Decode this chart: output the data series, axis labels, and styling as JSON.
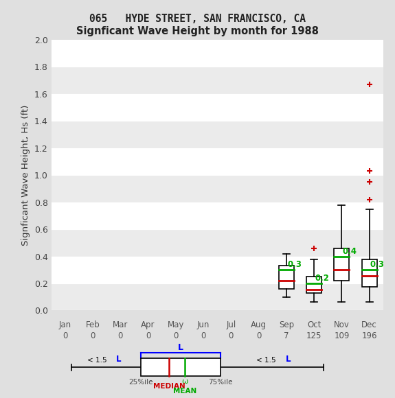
{
  "title_line1": "065   HYDE STREET, SAN FRANCISCO, CA",
  "title_line2": "Signficant Wave Height by month for 1988",
  "ylabel": "Signficant Wave Height, Hs (ft)",
  "months": [
    "Jan",
    "Feb",
    "Mar",
    "Apr",
    "May",
    "Jun",
    "Jul",
    "Aug",
    "Sep",
    "Oct",
    "Nov",
    "Dec"
  ],
  "counts": [
    0,
    0,
    0,
    0,
    0,
    0,
    0,
    0,
    7,
    125,
    109,
    196
  ],
  "ylim": [
    0.0,
    2.0
  ],
  "yticks": [
    0.0,
    0.2,
    0.4,
    0.6,
    0.8,
    1.0,
    1.2,
    1.4,
    1.6,
    1.8,
    2.0
  ],
  "box_data": {
    "Sep": {
      "q1": 0.16,
      "median": 0.22,
      "mean": 0.3,
      "q3": 0.33,
      "whislo": 0.1,
      "whishi": 0.42,
      "fliers": []
    },
    "Oct": {
      "q1": 0.13,
      "median": 0.155,
      "mean": 0.2,
      "q3": 0.25,
      "whislo": 0.065,
      "whishi": 0.375,
      "fliers": [
        0.46
      ]
    },
    "Nov": {
      "q1": 0.22,
      "median": 0.3,
      "mean": 0.4,
      "q3": 0.46,
      "whislo": 0.065,
      "whishi": 0.78,
      "fliers": []
    },
    "Dec": {
      "q1": 0.175,
      "median": 0.255,
      "mean": 0.3,
      "q3": 0.375,
      "whislo": 0.065,
      "whishi": 0.75,
      "fliers": [
        0.82,
        0.95,
        1.03,
        1.67
      ]
    }
  },
  "month_order": [
    "Sep",
    "Oct",
    "Nov",
    "Dec"
  ],
  "box_color": "#000000",
  "median_color": "#cc0000",
  "mean_color": "#00aa00",
  "flier_color": "#cc0000",
  "bg_color": "#e0e0e0",
  "plot_bg_light": "#ebebeb",
  "plot_bg_dark": "#d8d8d8",
  "grid_color": "#ffffff"
}
